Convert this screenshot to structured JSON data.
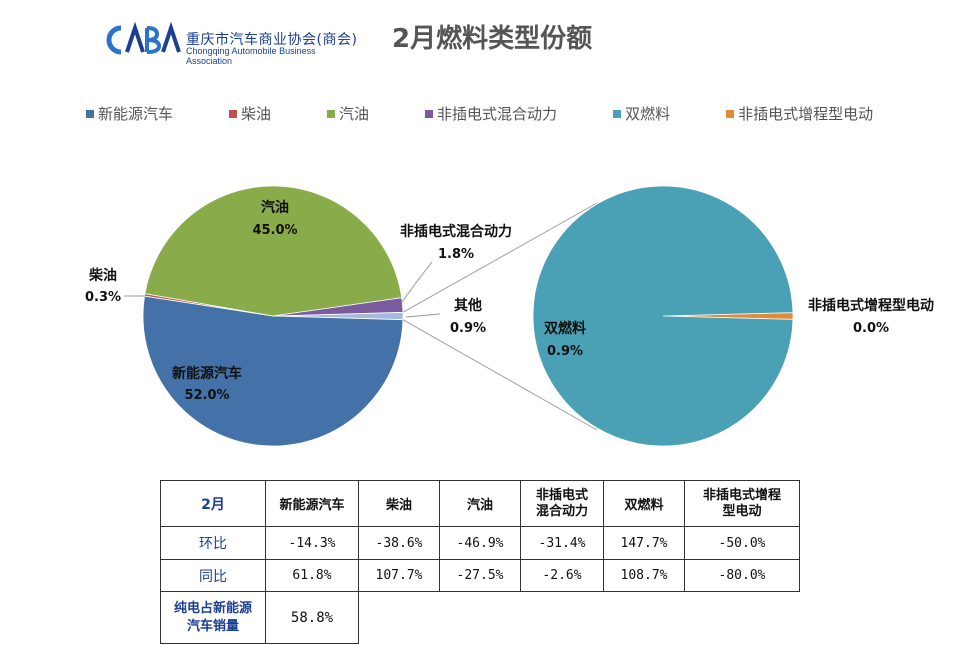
{
  "header": {
    "logo_text": "CABA",
    "logo_cn": "重庆市汽车商业协会(商会)",
    "logo_en": "Chongqing Automobile Business Association",
    "title": "2月燃料类型份额"
  },
  "colors": {
    "nev": "#4472a8",
    "diesel": "#c0504d",
    "gasoline": "#8aab4a",
    "phev": "#7a5c9e",
    "dual": "#4aa0b4",
    "erev": "#e08b3a",
    "other": "#a6b8db"
  },
  "legend": [
    {
      "label": "新能源汽车",
      "color": "#4472a8"
    },
    {
      "label": "柴油",
      "color": "#c0504d"
    },
    {
      "label": "汽油",
      "color": "#8aab4a"
    },
    {
      "label": "非插电式混合动力",
      "color": "#7a5c9e"
    },
    {
      "label": "双燃料",
      "color": "#4aa0b4"
    },
    {
      "label": "非插电式增程型电动",
      "color": "#e08b3a"
    }
  ],
  "chart_data": {
    "type": "pie",
    "subtype": "pie-of-pie",
    "title": "2月燃料类型份额",
    "main_pie": [
      {
        "label": "汽油",
        "value": 45.0,
        "display": "45.0%"
      },
      {
        "label": "非插电式混合动力",
        "value": 1.8,
        "display": "1.8%"
      },
      {
        "label": "其他",
        "value": 0.9,
        "display": "0.9%"
      },
      {
        "label": "新能源汽车",
        "value": 52.0,
        "display": "52.0%"
      },
      {
        "label": "柴油",
        "value": 0.3,
        "display": "0.3%"
      }
    ],
    "secondary_pie": [
      {
        "label": "双燃料",
        "value": 0.9,
        "display": "0.9%"
      },
      {
        "label": "非插电式增程型电动",
        "value": 0.0,
        "display": "0.0%"
      }
    ],
    "legend_position": "top"
  },
  "table": {
    "headers": [
      "2月",
      "新能源汽车",
      "柴油",
      "汽油",
      "非插电式\n混合动力",
      "双燃料",
      "非插电式增程\n型电动"
    ],
    "rows": [
      {
        "label": "环比",
        "values": [
          "-14.3%",
          "-38.6%",
          "-46.9%",
          "-31.4%",
          "147.7%",
          "-50.0%"
        ]
      },
      {
        "label": "同比",
        "values": [
          "61.8%",
          "107.7%",
          "-27.5%",
          "-2.6%",
          "108.7%",
          "-80.0%"
        ]
      }
    ],
    "ev_share": {
      "label": "纯电占新能源\n汽车销量",
      "value": "58.8%"
    }
  }
}
